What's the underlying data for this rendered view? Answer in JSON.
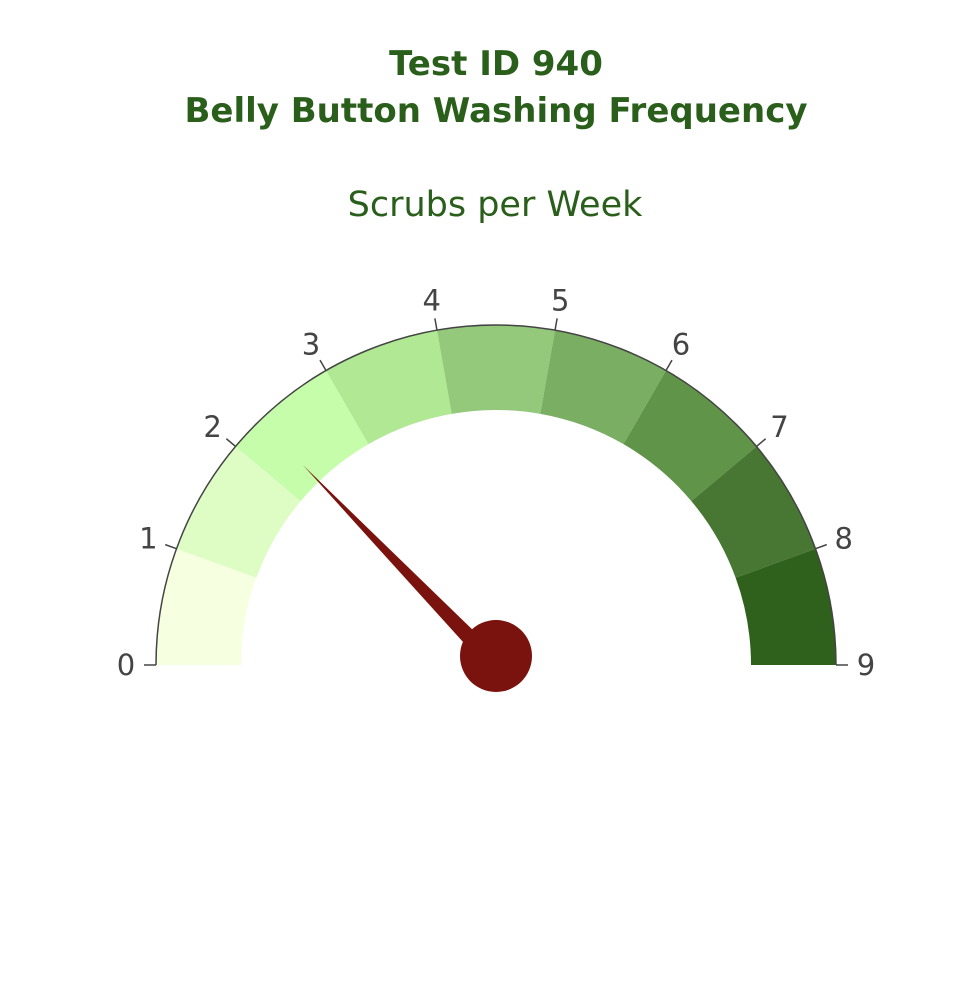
{
  "chart_data": {
    "type": "gauge",
    "title_lines": [
      "Test ID 940",
      "Belly Button Washing Frequency"
    ],
    "subtitle": "Scrubs per Week",
    "range": [
      0,
      9
    ],
    "ticks": [
      "0",
      "1",
      "2",
      "3",
      "4",
      "5",
      "6",
      "7",
      "8",
      "9"
    ],
    "value": 2.3,
    "bands": [
      {
        "from": 0,
        "to": 1,
        "color": "#f7ffe1"
      },
      {
        "from": 1,
        "to": 2,
        "color": "#ddfdc4"
      },
      {
        "from": 2,
        "to": 3,
        "color": "#c6fdab"
      },
      {
        "from": 3,
        "to": 4,
        "color": "#b0e893"
      },
      {
        "from": 4,
        "to": 5,
        "color": "#94c97c"
      },
      {
        "from": 5,
        "to": 6,
        "color": "#7aae63"
      },
      {
        "from": 6,
        "to": 7,
        "color": "#609448"
      },
      {
        "from": 7,
        "to": 8,
        "color": "#477732"
      },
      {
        "from": 8,
        "to": 9,
        "color": "#2f611c"
      }
    ],
    "needle_color": "#7a130d",
    "title_color": "#2a5e1b"
  }
}
